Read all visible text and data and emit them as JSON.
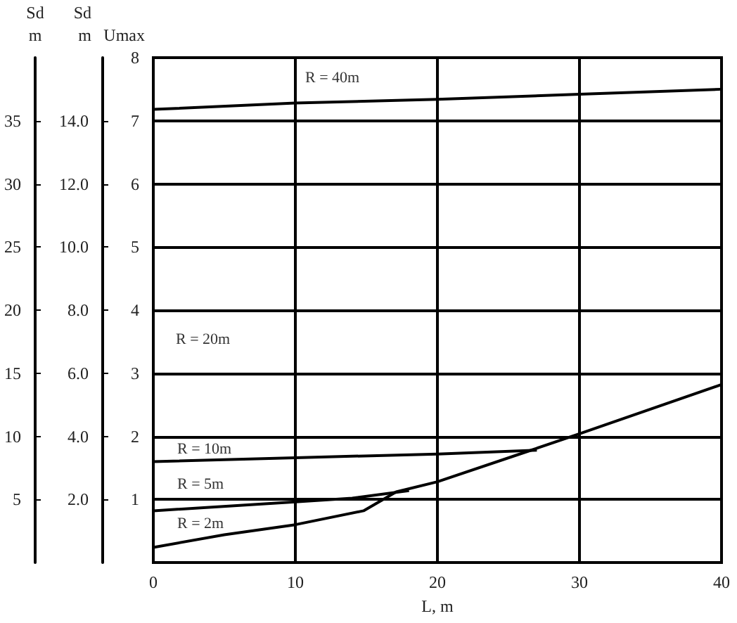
{
  "chart_data": {
    "type": "line",
    "xlabel": "L, m",
    "ylabel": "Sd\nm",
    "y2label": "Sd\nm",
    "y3label": "Umax",
    "xlim": [
      0,
      40
    ],
    "xticks": [
      0,
      10,
      20,
      30,
      40
    ],
    "ylim": [
      0,
      40
    ],
    "yticks": [
      5,
      10,
      15,
      20,
      25,
      30,
      35
    ],
    "y2lim": [
      0,
      16
    ],
    "y2ticks": [
      {
        "value": 2,
        "label": "2.0"
      },
      {
        "value": 4,
        "label": "4.0"
      },
      {
        "value": 6,
        "label": "6.0"
      },
      {
        "value": 8,
        "label": "8.0"
      },
      {
        "value": 10,
        "label": "10.0"
      },
      {
        "value": 12,
        "label": "12.0"
      },
      {
        "value": 14,
        "label": "14.0"
      }
    ],
    "y3lim": [
      0,
      8
    ],
    "y3ticks": [
      1,
      2,
      3,
      4,
      5,
      6,
      7,
      8
    ],
    "grid": true,
    "legend": false,
    "marker": "none",
    "line_style": "solid",
    "series": [
      {
        "name": "R = 40m",
        "color": "#000000",
        "x": [
          0,
          10,
          20,
          30,
          40
        ],
        "values": [
          35.9,
          36.4,
          36.7,
          37.1,
          37.5
        ]
      },
      {
        "name": "R = 10m",
        "color": "#000000",
        "x": [
          0,
          10,
          20,
          27
        ],
        "values": [
          8.0,
          8.3,
          8.6,
          8.9
        ]
      },
      {
        "name": "R = 5m",
        "color": "#000000",
        "x": [
          0,
          10,
          14,
          18
        ],
        "values": [
          4.1,
          4.8,
          5.1,
          5.7
        ]
      },
      {
        "name": "R = 2m",
        "color": "#000000",
        "x": [
          0,
          5,
          10,
          14.8,
          17.1,
          20,
          26.6,
          30,
          40
        ],
        "values": [
          1.2,
          2.2,
          3.0,
          4.1,
          5.6,
          6.4,
          8.9,
          10.2,
          14.1
        ]
      }
    ],
    "annotations": [
      "R = 20m"
    ]
  }
}
